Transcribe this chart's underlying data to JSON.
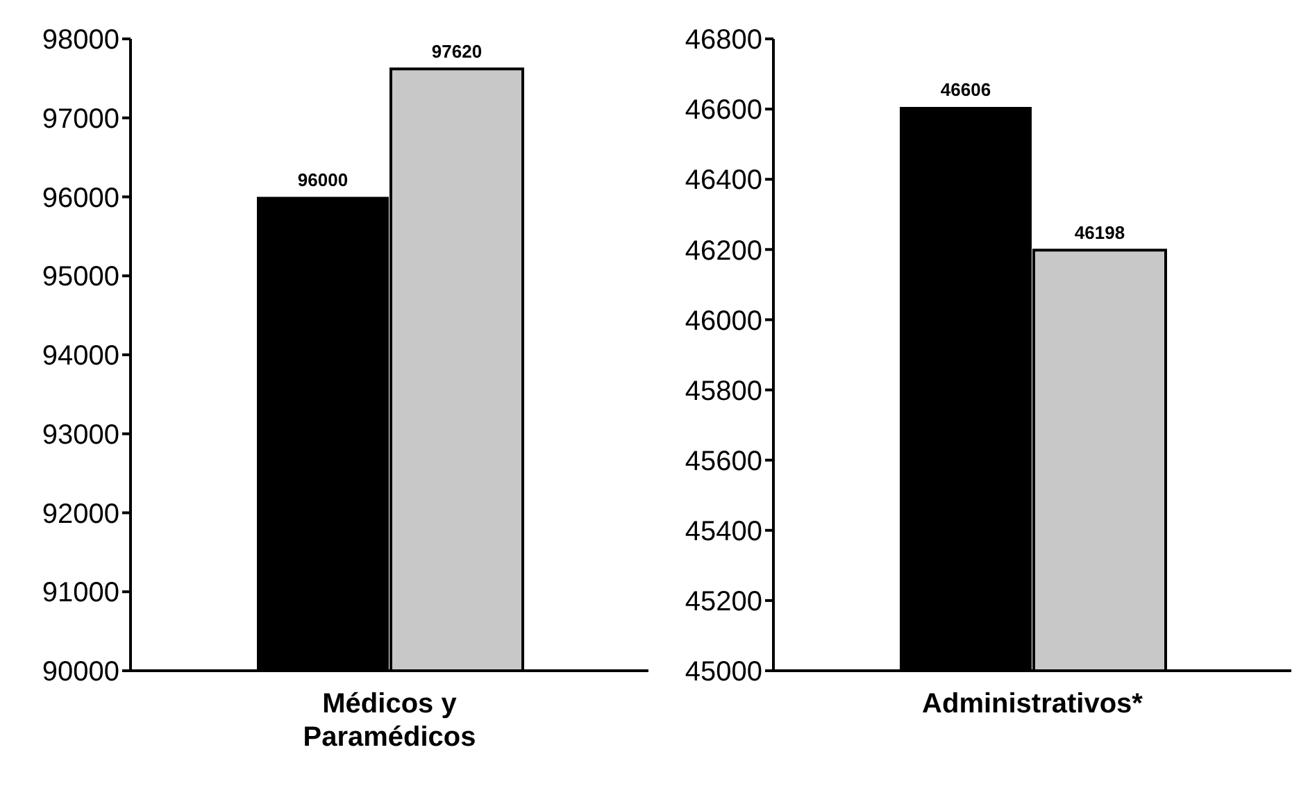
{
  "chart_data": [
    {
      "type": "bar",
      "xlabel": "Médicos y Paramédicos",
      "categories": [
        null,
        null
      ],
      "values": [
        96000,
        97620
      ],
      "colors": [
        "#000000",
        "#c8c8c8"
      ],
      "ylim": [
        90000,
        98000
      ],
      "yticks": [
        90000,
        91000,
        92000,
        93000,
        94000,
        95000,
        96000,
        97000,
        98000
      ],
      "data_labels": true
    },
    {
      "type": "bar",
      "xlabel": "Administrativos*",
      "categories": [
        null,
        null
      ],
      "values": [
        46606,
        46198
      ],
      "colors": [
        "#000000",
        "#c8c8c8"
      ],
      "ylim": [
        45000,
        46800
      ],
      "yticks": [
        45000,
        45200,
        45400,
        45600,
        45800,
        46000,
        46200,
        46400,
        46600,
        46800
      ],
      "data_labels": true
    }
  ]
}
